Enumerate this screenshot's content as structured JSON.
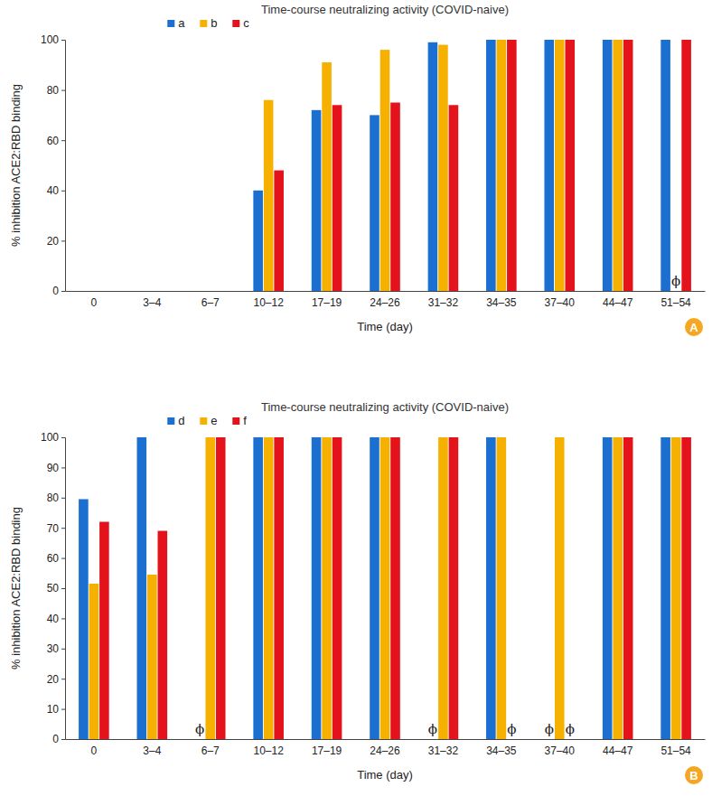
{
  "chart_data": [
    {
      "type": "bar",
      "title": "Time-course neutralizing activity (COVID-naive)",
      "x_label": "Time (day)",
      "y_label": "% inhibition ACE2:RBD binding",
      "panel_label": "A",
      "categories": [
        "0",
        "3–4",
        "6–7",
        "10–12",
        "17–19",
        "24–26",
        "31–32",
        "34–35",
        "37–40",
        "44–47",
        "51–54"
      ],
      "series": [
        {
          "name": "a",
          "color": "#1b6fd0",
          "values": [
            0,
            0,
            0,
            40,
            72,
            70,
            99,
            100,
            100,
            100,
            100
          ]
        },
        {
          "name": "b",
          "color": "#f5b000",
          "values": [
            0,
            0,
            0,
            76,
            91,
            96,
            98,
            100,
            100,
            100,
            null
          ]
        },
        {
          "name": "c",
          "color": "#e3121b",
          "values": [
            0,
            0,
            0,
            48,
            74,
            75,
            74,
            100,
            100,
            100,
            100
          ]
        }
      ],
      "annotations": [
        {
          "text": "ϕ",
          "category": "51–54",
          "series": "b"
        }
      ],
      "ylim": [
        0,
        100
      ],
      "yticks": [
        0,
        20,
        40,
        60,
        80,
        100
      ],
      "grid": false,
      "legend": "top"
    },
    {
      "type": "bar",
      "title": "Time-course neutralizing activity (COVID-naive)",
      "x_label": "Time (day)",
      "y_label": "% inhibition ACE2:RBD binding",
      "panel_label": "B",
      "categories": [
        "0",
        "3–4",
        "6–7",
        "10–12",
        "17–19",
        "24–26",
        "31–32",
        "34–35",
        "37–40",
        "44–47",
        "51–54"
      ],
      "series": [
        {
          "name": "d",
          "color": "#1b6fd0",
          "values": [
            79.5,
            100,
            null,
            100,
            100,
            100,
            null,
            100,
            null,
            100,
            100
          ]
        },
        {
          "name": "e",
          "color": "#f5b000",
          "values": [
            51.5,
            54.5,
            100,
            100,
            100,
            100,
            100,
            100,
            100,
            100,
            100
          ]
        },
        {
          "name": "f",
          "color": "#e3121b",
          "values": [
            72,
            69,
            100,
            100,
            100,
            100,
            100,
            null,
            null,
            100,
            100
          ]
        }
      ],
      "annotations": [
        {
          "text": "ϕ",
          "category": "6–7",
          "series": "d"
        },
        {
          "text": "ϕ",
          "category": "31–32",
          "series": "d"
        },
        {
          "text": "ϕ",
          "category": "34–35",
          "series": "f"
        },
        {
          "text": "ϕ",
          "category": "37–40",
          "series": "d"
        },
        {
          "text": "ϕ",
          "category": "37–40",
          "series": "f"
        }
      ],
      "ylim": [
        0,
        100
      ],
      "yticks": [
        0,
        10,
        20,
        30,
        40,
        50,
        60,
        70,
        80,
        90,
        100
      ],
      "grid": false,
      "legend": "top"
    }
  ]
}
